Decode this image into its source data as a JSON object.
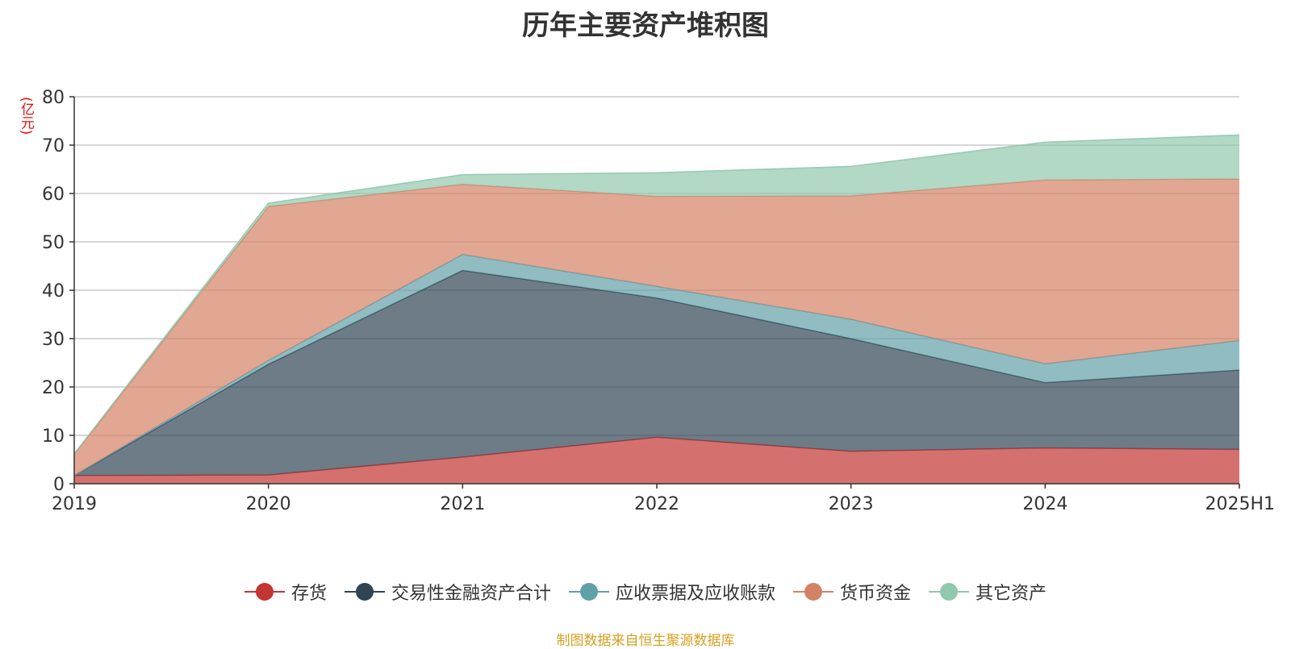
{
  "chart_data": {
    "type": "area",
    "title": "历年主要资产堆积图",
    "ylabel": "(亿元)",
    "ylim": [
      0,
      80
    ],
    "yticks": [
      0,
      10,
      20,
      30,
      40,
      50,
      60,
      70,
      80
    ],
    "grid": true,
    "stacked": true,
    "legend_position": "bottom",
    "categories": [
      "2019",
      "2020",
      "2021",
      "2022",
      "2023",
      "2024",
      "2025H1"
    ],
    "series": [
      {
        "name": "存货",
        "color": "#c23531",
        "values": [
          1.7,
          1.8,
          5.5,
          9.6,
          6.7,
          7.4,
          7.1
        ]
      },
      {
        "name": "交易性金融资产合计",
        "color": "#2f4554",
        "values": [
          0.0,
          22.9,
          38.6,
          28.8,
          23.3,
          13.5,
          16.4
        ]
      },
      {
        "name": "应收票据及应收账款",
        "color": "#61a0a8",
        "values": [
          0.0,
          0.8,
          3.3,
          2.4,
          4.0,
          3.9,
          6.1
        ]
      },
      {
        "name": "货币资金",
        "color": "#d48265",
        "values": [
          4.4,
          31.8,
          14.5,
          18.6,
          25.5,
          38.0,
          33.4
        ]
      },
      {
        "name": "其它资产",
        "color": "#91c7ae",
        "values": [
          0.1,
          0.7,
          2.0,
          4.9,
          6.1,
          7.8,
          9.1
        ]
      }
    ]
  },
  "footer": {
    "source": "制图数据来自恒生聚源数据库"
  }
}
